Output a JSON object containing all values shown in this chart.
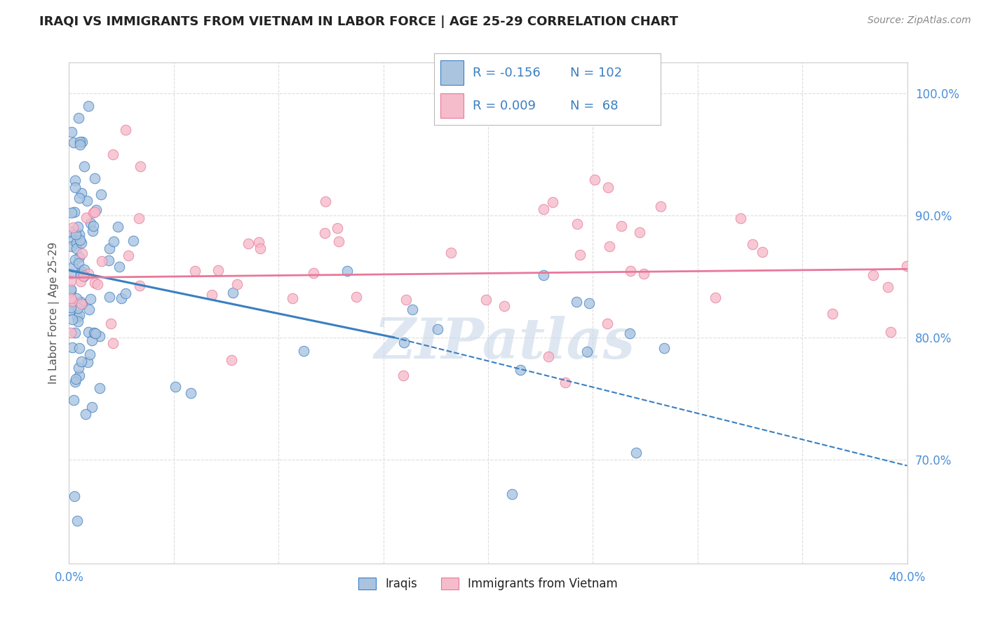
{
  "title": "IRAQI VS IMMIGRANTS FROM VIETNAM IN LABOR FORCE | AGE 25-29 CORRELATION CHART",
  "source": "Source: ZipAtlas.com",
  "ylabel": "In Labor Force | Age 25-29",
  "watermark": "ZIPatlas",
  "xlim": [
    0.0,
    0.4
  ],
  "ylim": [
    0.615,
    1.025
  ],
  "xticks": [
    0.0,
    0.05,
    0.1,
    0.15,
    0.2,
    0.25,
    0.3,
    0.35,
    0.4
  ],
  "xticklabels": [
    "0.0%",
    "",
    "",
    "",
    "",
    "",
    "",
    "",
    "40.0%"
  ],
  "yticks": [
    0.7,
    0.8,
    0.9,
    1.0
  ],
  "yticklabels": [
    "70.0%",
    "80.0%",
    "90.0%",
    "100.0%"
  ],
  "legend_R_iraqis": "-0.156",
  "legend_N_iraqis": "102",
  "legend_R_vietnam": "0.009",
  "legend_N_vietnam": "68",
  "iraqis_color": "#aac4e0",
  "vietnam_color": "#f5bccb",
  "trendline_iraqis_color": "#3a7fc1",
  "trendline_vietnam_color": "#e8789a",
  "background_color": "#ffffff",
  "grid_color": "#dddddd",
  "title_color": "#222222",
  "axis_label_color": "#555555",
  "tick_color": "#4a90d9",
  "watermark_color": "#c8d8e8",
  "iraqis_trendline_x0": 0.0,
  "iraqis_trendline_y0": 0.855,
  "iraqis_trendline_x1": 0.155,
  "iraqis_trendline_y1": 0.8,
  "iraqis_trendline_dashed_x1": 0.4,
  "iraqis_trendline_dashed_y1": 0.695,
  "vietnam_trendline_x0": 0.0,
  "vietnam_trendline_y0": 0.849,
  "vietnam_trendline_x1": 0.4,
  "vietnam_trendline_y1": 0.856
}
